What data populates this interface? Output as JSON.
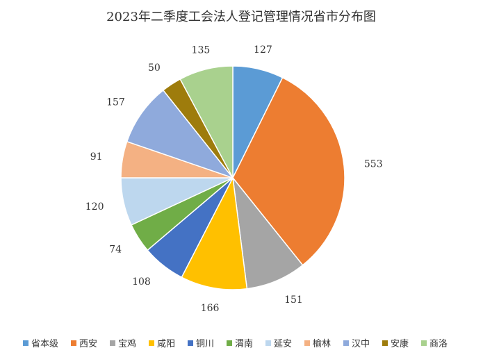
{
  "chart_data": {
    "type": "pie",
    "title": "2023年二季度工会法人登记管理情况省市分布图",
    "categories": [
      "省本级",
      "西安",
      "宝鸡",
      "咸阳",
      "铜川",
      "渭南",
      "延安",
      "榆林",
      "汉中",
      "安康",
      "商洛"
    ],
    "values": [
      127,
      553,
      151,
      166,
      108,
      74,
      120,
      91,
      157,
      50,
      135
    ],
    "colors": [
      "#5B9BD5",
      "#ED7D31",
      "#A5A5A5",
      "#FFC000",
      "#4472C4",
      "#70AD47",
      "#BDD7EE",
      "#F4B183",
      "#8FAADC",
      "#9E7C0C",
      "#A9D18E"
    ],
    "legend_position": "bottom",
    "start_angle": "12 o'clock",
    "direction": "clockwise"
  }
}
